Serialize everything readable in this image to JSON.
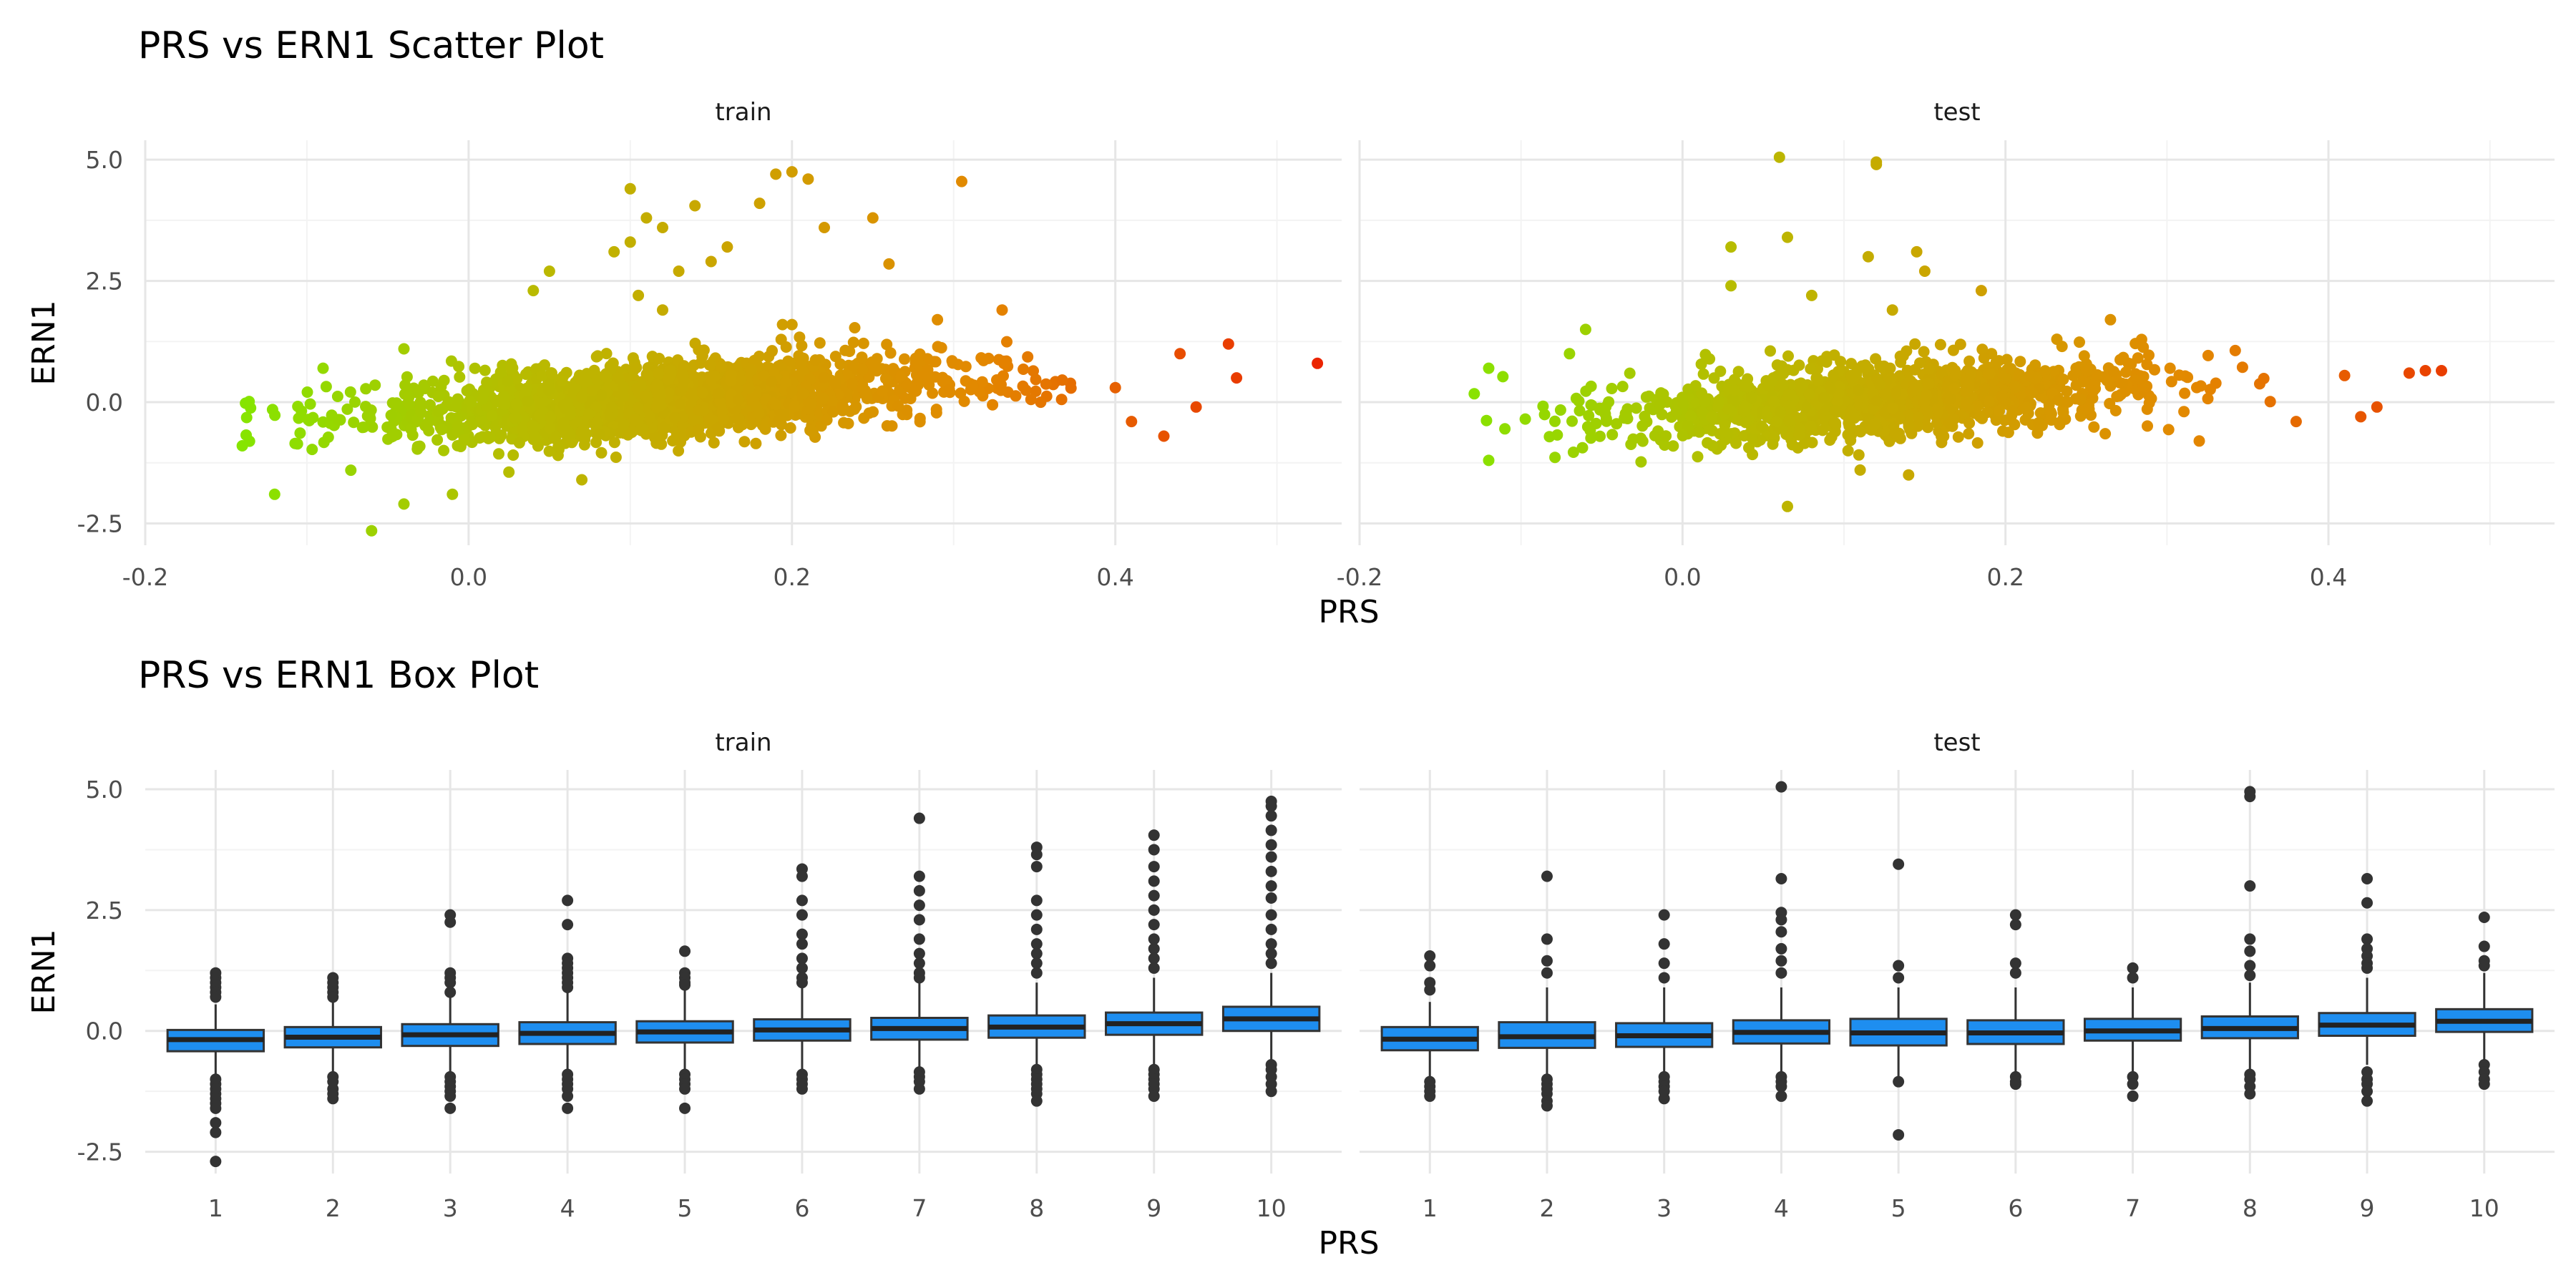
{
  "chart_data": [
    {
      "type": "scatter",
      "title": "PRS vs ERN1 Scatter Plot",
      "xlabel": "PRS",
      "ylabel": "ERN1",
      "xlim": [
        -0.2,
        0.54
      ],
      "ylim": [
        -2.95,
        5.4
      ],
      "x_ticks": [
        "-0.2",
        "0.0",
        "0.2",
        "0.4"
      ],
      "x_tick_values": [
        -0.2,
        0.0,
        0.2,
        0.4
      ],
      "y_ticks": [
        "-2.5",
        "0.0",
        "2.5",
        "5.0"
      ],
      "y_tick_values": [
        -2.5,
        0.0,
        2.5,
        5.0
      ],
      "grid": true,
      "color_scale": [
        "#66ff00",
        "#b8bb00",
        "#e38800",
        "#ee0000"
      ],
      "panels": [
        {
          "name": "train",
          "cloud": {
            "x_mean": 0.12,
            "x_sd": 0.085,
            "slope": 2.0,
            "intercept": -0.2,
            "noise_sd": 0.38,
            "n": 2000
          },
          "points": [
            [
              0.1,
              4.4
            ],
            [
              0.2,
              4.75
            ],
            [
              0.19,
              4.7
            ],
            [
              0.21,
              4.6
            ],
            [
              0.305,
              4.55
            ],
            [
              0.14,
              4.05
            ],
            [
              0.18,
              4.1
            ],
            [
              0.11,
              3.8
            ],
            [
              0.12,
              3.6
            ],
            [
              0.22,
              3.6
            ],
            [
              0.25,
              3.8
            ],
            [
              0.1,
              3.3
            ],
            [
              0.09,
              3.1
            ],
            [
              0.16,
              3.2
            ],
            [
              0.15,
              2.9
            ],
            [
              0.13,
              2.7
            ],
            [
              0.05,
              2.7
            ],
            [
              0.26,
              2.85
            ],
            [
              0.04,
              2.3
            ],
            [
              0.105,
              2.2
            ],
            [
              0.12,
              1.9
            ],
            [
              0.2,
              1.6
            ],
            [
              0.29,
              1.7
            ],
            [
              0.33,
              1.9
            ],
            [
              0.47,
              1.2
            ],
            [
              0.44,
              1.0
            ],
            [
              0.43,
              -0.7
            ],
            [
              0.45,
              -0.1
            ],
            [
              0.475,
              0.5
            ],
            [
              0.525,
              0.8
            ],
            [
              0.4,
              0.3
            ],
            [
              0.41,
              -0.4
            ],
            [
              -0.12,
              -1.9
            ],
            [
              -0.06,
              -2.65
            ],
            [
              -0.04,
              -2.1
            ],
            [
              -0.14,
              -0.9
            ],
            [
              -0.01,
              -1.9
            ],
            [
              0.07,
              -1.6
            ],
            [
              -0.09,
              0.7
            ],
            [
              -0.04,
              1.1
            ]
          ]
        },
        {
          "name": "test",
          "cloud": {
            "x_mean": 0.12,
            "x_sd": 0.085,
            "slope": 2.0,
            "intercept": -0.2,
            "noise_sd": 0.38,
            "n": 1200
          },
          "points": [
            [
              0.06,
              5.05
            ],
            [
              0.12,
              4.95
            ],
            [
              0.12,
              4.9
            ],
            [
              0.065,
              3.4
            ],
            [
              0.03,
              3.2
            ],
            [
              0.115,
              3.0
            ],
            [
              0.145,
              3.1
            ],
            [
              0.15,
              2.7
            ],
            [
              0.08,
              2.2
            ],
            [
              0.03,
              2.4
            ],
            [
              0.185,
              2.3
            ],
            [
              0.265,
              1.7
            ],
            [
              0.13,
              1.9
            ],
            [
              0.45,
              0.6
            ],
            [
              0.46,
              0.65
            ],
            [
              0.47,
              0.65
            ],
            [
              0.41,
              0.55
            ],
            [
              0.43,
              -0.1
            ],
            [
              0.42,
              -0.3
            ],
            [
              0.38,
              -0.4
            ],
            [
              -0.12,
              0.7
            ],
            [
              -0.12,
              -1.2
            ],
            [
              -0.11,
              -0.55
            ],
            [
              0.065,
              -2.15
            ],
            [
              0.11,
              -1.4
            ],
            [
              0.14,
              -1.5
            ],
            [
              0.32,
              -0.8
            ],
            [
              -0.07,
              1.0
            ],
            [
              -0.06,
              1.5
            ]
          ]
        }
      ]
    },
    {
      "type": "box",
      "title": "PRS vs ERN1 Box Plot",
      "xlabel": "PRS",
      "ylabel": "ERN1",
      "categories": [
        "1",
        "2",
        "3",
        "4",
        "5",
        "6",
        "7",
        "8",
        "9",
        "10"
      ],
      "ylim": [
        -2.95,
        5.4
      ],
      "y_ticks": [
        "-2.5",
        "0.0",
        "2.5",
        "5.0"
      ],
      "y_tick_values": [
        -2.5,
        0.0,
        2.5,
        5.0
      ],
      "grid": true,
      "fill_color": "#1e8ef0",
      "panels": [
        {
          "name": "train",
          "boxes": [
            {
              "q1": -0.42,
              "median": -0.18,
              "q3": 0.02,
              "lower": -0.95,
              "upper": 0.55,
              "outliers": [
                1.2,
                1.1,
                1.0,
                0.9,
                0.8,
                0.7,
                -1.0,
                -1.1,
                -1.2,
                -1.3,
                -1.4,
                -1.5,
                -1.6,
                -1.9,
                -2.1,
                -2.7
              ]
            },
            {
              "q1": -0.34,
              "median": -0.13,
              "q3": 0.08,
              "lower": -0.9,
              "upper": 0.6,
              "outliers": [
                1.1,
                1.0,
                0.9,
                0.8,
                0.7,
                -0.95,
                -1.05,
                -1.2,
                -1.3,
                -1.4
              ]
            },
            {
              "q1": -0.31,
              "median": -0.08,
              "q3": 0.14,
              "lower": -0.9,
              "upper": 0.7,
              "outliers": [
                2.4,
                2.25,
                1.2,
                1.1,
                1.0,
                0.8,
                -0.95,
                -1.05,
                -1.15,
                -1.25,
                -1.35,
                -1.6
              ]
            },
            {
              "q1": -0.27,
              "median": -0.05,
              "q3": 0.18,
              "lower": -0.85,
              "upper": 0.8,
              "outliers": [
                2.7,
                2.2,
                1.5,
                1.4,
                1.3,
                1.2,
                1.1,
                1.0,
                0.9,
                -0.9,
                -1.0,
                -1.1,
                -1.2,
                -1.35,
                -1.6
              ]
            },
            {
              "q1": -0.24,
              "median": -0.02,
              "q3": 0.2,
              "lower": -0.8,
              "upper": 0.85,
              "outliers": [
                1.65,
                1.2,
                1.1,
                1.0,
                0.95,
                -0.9,
                -1.0,
                -1.1,
                -1.2,
                -1.6
              ]
            },
            {
              "q1": -0.2,
              "median": 0.02,
              "q3": 0.24,
              "lower": -0.8,
              "upper": 0.9,
              "outliers": [
                3.35,
                3.2,
                2.7,
                2.4,
                2.0,
                1.8,
                1.5,
                1.3,
                1.1,
                1.0,
                -0.9,
                -1.0,
                -1.1,
                -1.2
              ]
            },
            {
              "q1": -0.18,
              "median": 0.05,
              "q3": 0.27,
              "lower": -0.75,
              "upper": 1.0,
              "outliers": [
                4.4,
                3.2,
                2.9,
                2.6,
                2.3,
                1.9,
                1.6,
                1.4,
                1.2,
                1.1,
                -0.85,
                -0.95,
                -1.05,
                -1.2
              ]
            },
            {
              "q1": -0.14,
              "median": 0.08,
              "q3": 0.32,
              "lower": -0.75,
              "upper": 1.0,
              "outliers": [
                3.8,
                3.65,
                3.4,
                2.7,
                2.4,
                2.1,
                1.8,
                1.6,
                1.4,
                1.2,
                -0.8,
                -0.9,
                -1.0,
                -1.1,
                -1.2,
                -1.3,
                -1.45
              ]
            },
            {
              "q1": -0.08,
              "median": 0.15,
              "q3": 0.38,
              "lower": -0.7,
              "upper": 1.1,
              "outliers": [
                4.05,
                3.75,
                3.4,
                3.1,
                2.8,
                2.5,
                2.2,
                1.9,
                1.7,
                1.5,
                1.3,
                -0.8,
                -0.9,
                -1.0,
                -1.1,
                -1.2,
                -1.35
              ]
            },
            {
              "q1": 0.0,
              "median": 0.25,
              "q3": 0.5,
              "lower": -0.6,
              "upper": 1.2,
              "outliers": [
                4.75,
                4.65,
                4.45,
                4.15,
                3.85,
                3.6,
                3.3,
                3.0,
                2.75,
                2.4,
                2.1,
                1.8,
                1.6,
                1.4,
                -0.7,
                -0.8,
                -0.95,
                -1.1,
                -1.25
              ]
            }
          ]
        },
        {
          "name": "test",
          "boxes": [
            {
              "q1": -0.4,
              "median": -0.17,
              "q3": 0.08,
              "lower": -0.95,
              "upper": 0.6,
              "outliers": [
                1.55,
                1.35,
                1.0,
                0.85,
                -1.05,
                -1.15,
                -1.25,
                -1.35
              ]
            },
            {
              "q1": -0.35,
              "median": -0.12,
              "q3": 0.18,
              "lower": -0.95,
              "upper": 0.9,
              "outliers": [
                3.2,
                1.9,
                1.45,
                1.2,
                -1.0,
                -1.1,
                -1.2,
                -1.3,
                -1.45,
                -1.55
              ]
            },
            {
              "q1": -0.33,
              "median": -0.1,
              "q3": 0.16,
              "lower": -0.9,
              "upper": 0.9,
              "outliers": [
                2.4,
                1.8,
                1.4,
                1.1,
                -0.95,
                -1.05,
                -1.15,
                -1.25,
                -1.4
              ]
            },
            {
              "q1": -0.26,
              "median": -0.03,
              "q3": 0.22,
              "lower": -0.85,
              "upper": 0.9,
              "outliers": [
                5.05,
                3.15,
                2.45,
                2.3,
                2.05,
                1.7,
                1.45,
                1.2,
                -0.95,
                -1.05,
                -1.15,
                -1.35
              ]
            },
            {
              "q1": -0.3,
              "median": -0.04,
              "q3": 0.25,
              "lower": -0.95,
              "upper": 0.9,
              "outliers": [
                3.45,
                1.35,
                1.1,
                -1.05,
                -2.15
              ]
            },
            {
              "q1": -0.27,
              "median": -0.04,
              "q3": 0.22,
              "lower": -0.9,
              "upper": 0.9,
              "outliers": [
                2.4,
                2.2,
                1.4,
                1.2,
                -0.95,
                -1.05,
                -1.1
              ]
            },
            {
              "q1": -0.2,
              "median": 0.0,
              "q3": 0.25,
              "lower": -0.85,
              "upper": 0.9,
              "outliers": [
                1.3,
                1.1,
                -0.95,
                -1.1,
                -1.35
              ]
            },
            {
              "q1": -0.15,
              "median": 0.05,
              "q3": 0.3,
              "lower": -0.85,
              "upper": 1.0,
              "outliers": [
                4.95,
                4.85,
                3.0,
                1.9,
                1.65,
                1.35,
                1.15,
                -0.9,
                -1.0,
                -1.15,
                -1.3
              ]
            },
            {
              "q1": -0.1,
              "median": 0.12,
              "q3": 0.37,
              "lower": -0.7,
              "upper": 1.1,
              "outliers": [
                3.15,
                2.65,
                1.9,
                1.7,
                1.55,
                1.4,
                1.3,
                -0.85,
                -1.0,
                -1.1,
                -1.25,
                -1.45
              ]
            },
            {
              "q1": -0.02,
              "median": 0.2,
              "q3": 0.45,
              "lower": -0.6,
              "upper": 1.2,
              "outliers": [
                2.35,
                1.75,
                1.45,
                1.35,
                -0.7,
                -0.85,
                -1.0,
                -1.1
              ]
            }
          ]
        }
      ]
    }
  ]
}
